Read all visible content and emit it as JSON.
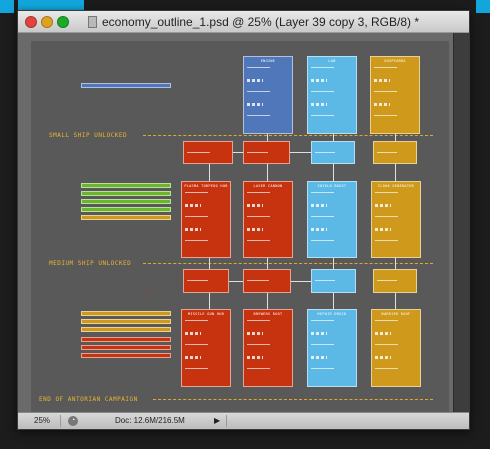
{
  "window": {
    "title": "economy_outline_1.psd @ 25% (Layer 39 copy 3, RGB/8) *"
  },
  "statusbar": {
    "zoom": "25%",
    "doc_size": "Doc: 12.6M/216.5M"
  },
  "artboard": {
    "milestones": [
      {
        "label": "SMALL SHIP UNLOCKED"
      },
      {
        "label": "MEDIUM SHIP UNLOCKED"
      },
      {
        "label": "END OF ANTORIAN CAMPAIGN"
      }
    ],
    "columns": [
      {
        "title": "ENGINE",
        "color": "#4f77b9"
      },
      {
        "title": "LAB",
        "color": "#5cb9e5"
      },
      {
        "title": "SHIPYARDS",
        "color": "#cf9a1c"
      }
    ],
    "row1_titles": [
      "PLASMA TORPEDO HUB",
      "LASER CANNON",
      "SHIELD BOOST",
      "CLOAK GENERATOR"
    ],
    "row2_titles": [
      "MISSILE GUN HUB",
      "BREWERS ROOT",
      "REPAIR DROID",
      "BARRIER ROOF"
    ],
    "colors": {
      "engine": "#4f77b9",
      "lab": "#5cb9e5",
      "shipyard": "#cf9a1c",
      "weapons": "#c7320f",
      "legend_green": "#6ab52c",
      "milestone": "#e8b631",
      "desktop_accent": "#12a6dc"
    }
  }
}
